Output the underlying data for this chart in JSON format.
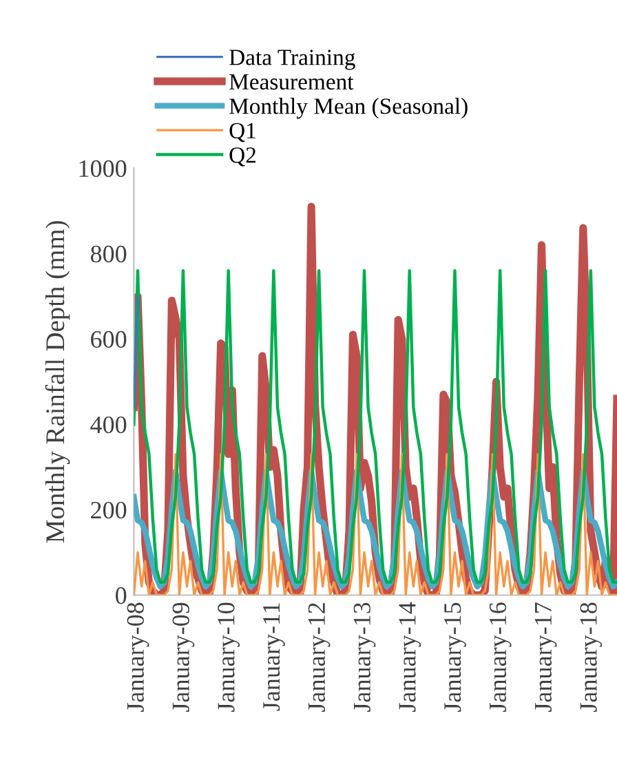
{
  "chart_data": {
    "type": "line",
    "ylabel": "Monthly Rainfall Depth (mm)",
    "x": [
      "2007-12",
      "2008-01",
      "2008-02",
      "2008-03",
      "2008-04",
      "2008-05",
      "2008-06",
      "2008-07",
      "2008-08",
      "2008-09",
      "2008-10",
      "2008-11",
      "2008-12",
      "2009-01",
      "2009-02",
      "2009-03",
      "2009-04",
      "2009-05",
      "2009-06",
      "2009-07",
      "2009-08",
      "2009-09",
      "2009-10",
      "2009-11",
      "2009-12",
      "2010-01",
      "2010-02",
      "2010-03",
      "2010-04",
      "2010-05",
      "2010-06",
      "2010-07",
      "2010-08",
      "2010-09",
      "2010-10",
      "2010-11",
      "2010-12",
      "2011-01",
      "2011-02",
      "2011-03",
      "2011-04",
      "2011-05",
      "2011-06",
      "2011-07",
      "2011-08",
      "2011-09",
      "2011-10",
      "2011-11",
      "2011-12",
      "2012-01",
      "2012-02",
      "2012-03",
      "2012-04",
      "2012-05",
      "2012-06",
      "2012-07",
      "2012-08",
      "2012-09",
      "2012-10",
      "2012-11",
      "2012-12",
      "2013-01",
      "2013-02",
      "2013-03",
      "2013-04",
      "2013-05",
      "2013-06",
      "2013-07",
      "2013-08",
      "2013-09",
      "2013-10",
      "2013-11",
      "2013-12",
      "2014-01",
      "2014-02",
      "2014-03",
      "2014-04",
      "2014-05",
      "2014-06",
      "2014-07",
      "2014-08",
      "2014-09",
      "2014-10",
      "2014-11",
      "2014-12",
      "2015-01",
      "2015-02",
      "2015-03",
      "2015-04",
      "2015-05",
      "2015-06",
      "2015-07",
      "2015-08",
      "2015-09",
      "2015-10",
      "2015-11",
      "2015-12",
      "2016-01",
      "2016-02",
      "2016-03",
      "2016-04",
      "2016-05",
      "2016-06",
      "2016-07",
      "2016-08",
      "2016-09",
      "2016-10",
      "2016-11",
      "2016-12",
      "2017-01",
      "2017-02",
      "2017-03",
      "2017-04",
      "2017-05",
      "2017-06",
      "2017-07",
      "2017-08",
      "2017-09",
      "2017-10",
      "2017-11",
      "2017-12",
      "2018-01",
      "2018-02",
      "2018-03",
      "2018-04",
      "2018-05",
      "2018-06",
      "2018-07",
      "2018-08"
    ],
    "series": [
      {
        "name": "Data Training",
        "color": "#4472c4",
        "x": [
          "2007-12",
          "2008-01"
        ],
        "values": [
          440,
          700
        ]
      },
      {
        "name": "Measurement",
        "color": "#c0504d",
        "values": [
          440,
          700,
          450,
          120,
          30,
          10,
          0,
          0,
          10,
          150,
          690,
          650,
          600,
          280,
          180,
          120,
          60,
          40,
          10,
          0,
          0,
          100,
          290,
          590,
          580,
          330,
          480,
          250,
          100,
          30,
          10,
          0,
          0,
          60,
          560,
          480,
          300,
          340,
          280,
          150,
          60,
          20,
          10,
          0,
          0,
          200,
          300,
          910,
          450,
          300,
          200,
          130,
          50,
          30,
          0,
          0,
          10,
          150,
          610,
          560,
          250,
          310,
          280,
          220,
          100,
          40,
          10,
          0,
          0,
          80,
          645,
          600,
          300,
          230,
          250,
          180,
          80,
          30,
          0,
          0,
          0,
          90,
          470,
          450,
          280,
          240,
          170,
          100,
          40,
          10,
          0,
          0,
          0,
          10,
          150,
          300,
          500,
          300,
          230,
          250,
          140,
          60,
          20,
          0,
          10,
          100,
          250,
          470,
          820,
          500,
          250,
          300,
          130,
          50,
          10,
          0,
          0,
          80,
          500,
          860,
          600,
          150,
          100,
          50,
          20,
          80,
          20,
          0,
          460
        ]
      },
      {
        "name": "Monthly Mean (Seasonal)",
        "color": "#4bacc6",
        "values": [
          230,
          175,
          170,
          150,
          110,
          70,
          40,
          20,
          30,
          90,
          200,
          290,
          230,
          175,
          170,
          150,
          110,
          70,
          40,
          20,
          30,
          90,
          200,
          290,
          230,
          175,
          170,
          150,
          110,
          70,
          40,
          20,
          30,
          90,
          200,
          290,
          230,
          175,
          170,
          150,
          110,
          70,
          40,
          20,
          30,
          90,
          200,
          290,
          230,
          175,
          170,
          150,
          110,
          70,
          40,
          20,
          30,
          90,
          200,
          290,
          230,
          175,
          170,
          150,
          110,
          70,
          40,
          20,
          30,
          90,
          200,
          290,
          230,
          175,
          170,
          150,
          110,
          70,
          40,
          20,
          30,
          90,
          200,
          290,
          230,
          175,
          170,
          150,
          110,
          70,
          40,
          20,
          30,
          90,
          200,
          290,
          230,
          175,
          170,
          150,
          110,
          70,
          40,
          20,
          30,
          90,
          200,
          290,
          230,
          175,
          170,
          150,
          110,
          70,
          40,
          20,
          30,
          90,
          200,
          290,
          230,
          175,
          170,
          150,
          110,
          70,
          40,
          20,
          30
        ]
      },
      {
        "name": "Q1",
        "color": "#f79646",
        "values": [
          0,
          100,
          20,
          80,
          0,
          30,
          0,
          0,
          0,
          10,
          60,
          330,
          0,
          100,
          20,
          80,
          0,
          30,
          0,
          0,
          0,
          10,
          60,
          330,
          0,
          100,
          20,
          80,
          0,
          30,
          0,
          0,
          0,
          10,
          60,
          330,
          0,
          100,
          20,
          80,
          0,
          30,
          0,
          0,
          0,
          10,
          60,
          330,
          0,
          100,
          20,
          80,
          0,
          30,
          0,
          0,
          0,
          10,
          60,
          330,
          0,
          100,
          20,
          80,
          0,
          30,
          0,
          0,
          0,
          10,
          60,
          330,
          0,
          100,
          20,
          80,
          0,
          30,
          0,
          0,
          0,
          10,
          60,
          330,
          0,
          100,
          20,
          80,
          0,
          30,
          0,
          0,
          0,
          10,
          60,
          330,
          0,
          100,
          20,
          80,
          0,
          30,
          0,
          0,
          0,
          10,
          60,
          330,
          0,
          100,
          20,
          80,
          0,
          30,
          0,
          0,
          0,
          10,
          60,
          330,
          0,
          100,
          20,
          80,
          0,
          30,
          0,
          0,
          0
        ]
      },
      {
        "name": "Q2",
        "color": "#00b050",
        "values": [
          400,
          760,
          440,
          380,
          330,
          180,
          60,
          30,
          30,
          50,
          160,
          230,
          400,
          760,
          440,
          380,
          330,
          180,
          60,
          30,
          30,
          50,
          160,
          230,
          400,
          760,
          440,
          380,
          330,
          180,
          60,
          30,
          30,
          50,
          160,
          230,
          400,
          760,
          440,
          380,
          330,
          180,
          60,
          30,
          30,
          50,
          160,
          230,
          400,
          760,
          440,
          380,
          330,
          180,
          60,
          30,
          30,
          50,
          160,
          230,
          400,
          760,
          440,
          380,
          330,
          180,
          60,
          30,
          30,
          50,
          160,
          230,
          400,
          760,
          440,
          380,
          330,
          180,
          60,
          30,
          30,
          50,
          160,
          230,
          400,
          760,
          440,
          380,
          330,
          180,
          60,
          30,
          30,
          50,
          160,
          230,
          400,
          760,
          440,
          380,
          330,
          180,
          60,
          30,
          30,
          50,
          160,
          230,
          400,
          760,
          440,
          380,
          330,
          180,
          60,
          30,
          30,
          50,
          160,
          230,
          400,
          760,
          440,
          380,
          330,
          180,
          60,
          30,
          30
        ]
      }
    ],
    "xlim": [
      "2007-12",
      "2018-08"
    ],
    "xticks": [
      {
        "value": "2008-01",
        "label": "January-08"
      },
      {
        "value": "2009-01",
        "label": "January-09"
      },
      {
        "value": "2010-01",
        "label": "January-10"
      },
      {
        "value": "2011-01",
        "label": "January-11"
      },
      {
        "value": "2012-01",
        "label": "January-12"
      },
      {
        "value": "2013-01",
        "label": "January-13"
      },
      {
        "value": "2014-01",
        "label": "January-14"
      },
      {
        "value": "2015-01",
        "label": "January-15"
      },
      {
        "value": "2016-01",
        "label": "January-16"
      },
      {
        "value": "2017-01",
        "label": "January-17"
      },
      {
        "value": "2018-01",
        "label": "January-18"
      }
    ],
    "ylim": [
      0,
      1000
    ],
    "yticks": [
      0,
      200,
      400,
      600,
      800,
      1000
    ],
    "grid": false,
    "legend": "top left",
    "marker": "none",
    "line_style": "solid"
  }
}
